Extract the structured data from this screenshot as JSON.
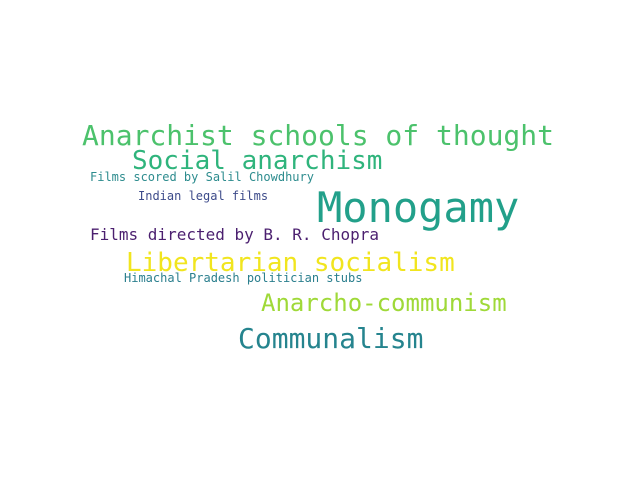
{
  "words": [
    {
      "text": "Anarchist schools of thought",
      "color": "#4cc26c"
    },
    {
      "text": "Social anarchism",
      "color": "#2fb47c"
    },
    {
      "text": "Films scored by Salil Chowdhury",
      "color": "#2d8c8e"
    },
    {
      "text": "Monogamy",
      "color": "#22a08a"
    },
    {
      "text": "Indian legal films",
      "color": "#3d4b8a"
    },
    {
      "text": "Films directed by B. R. Chopra",
      "color": "#4b1f6f"
    },
    {
      "text": "Libertarian socialism",
      "color": "#f1e51e"
    },
    {
      "text": "Himachal Pradesh politician stubs",
      "color": "#2b7f8e"
    },
    {
      "text": "Anarcho-communism",
      "color": "#9fd938"
    },
    {
      "text": "Communalism",
      "color": "#25848e"
    }
  ]
}
